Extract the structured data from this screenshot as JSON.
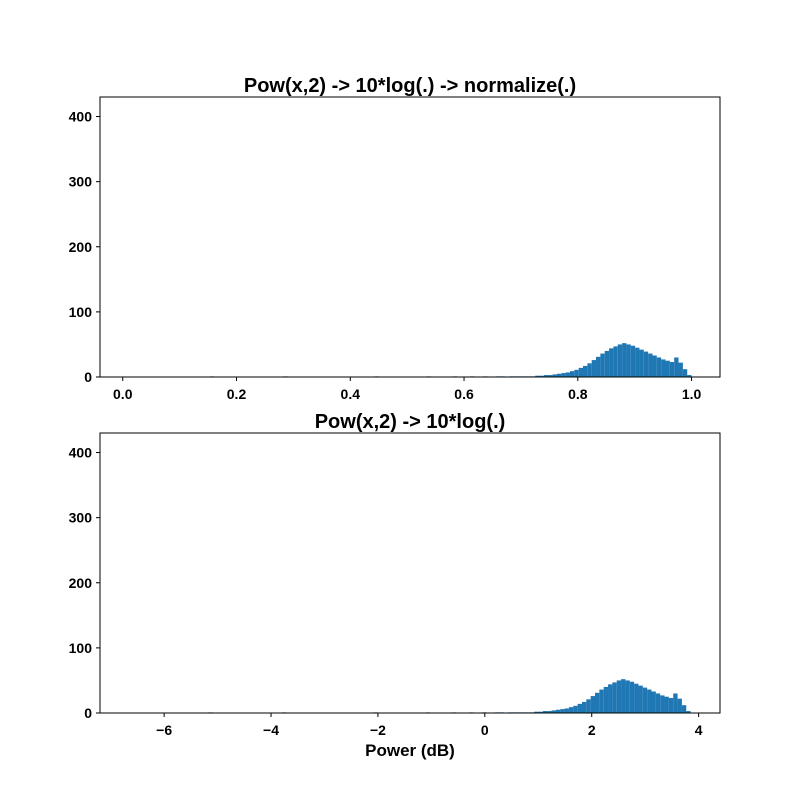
{
  "chart_data": [
    {
      "type": "bar",
      "subtype": "histogram",
      "title": "Pow(x,2) -> 10*log(.) -> normalize(.)",
      "xlabel": "",
      "ylabel": "",
      "xlim": [
        -0.04,
        1.05
      ],
      "ylim": [
        0,
        430
      ],
      "xticks": [
        0.0,
        0.2,
        0.4,
        0.6,
        0.8,
        1.0
      ],
      "xtick_labels": [
        "0.0",
        "0.2",
        "0.4",
        "0.6",
        "0.8",
        "1.0"
      ],
      "yticks": [
        0,
        100,
        200,
        300,
        400
      ],
      "ytick_labels": [
        "0",
        "100",
        "200",
        "300",
        "400"
      ],
      "color": "#1f77b4",
      "bins_range": [
        0.0,
        1.0
      ],
      "counts_approx": [
        0,
        0,
        0,
        0,
        0,
        0,
        0,
        0,
        0,
        0,
        0,
        0,
        0,
        0,
        0,
        0,
        0,
        0,
        0,
        0,
        1,
        0,
        0,
        0,
        0,
        0,
        0,
        0,
        0,
        0,
        0,
        0,
        0,
        0,
        0,
        0,
        0,
        1,
        0,
        0,
        0,
        0,
        0,
        0,
        0,
        0,
        0,
        0,
        0,
        0,
        0,
        0,
        0,
        0,
        0,
        0,
        0,
        0,
        1,
        0,
        0,
        0,
        0,
        0,
        0,
        0,
        0,
        0,
        0,
        0,
        1,
        0,
        0,
        0,
        0,
        0,
        1,
        0,
        0,
        0,
        1,
        0,
        0,
        1,
        0,
        0,
        1,
        1,
        0,
        1,
        1,
        1,
        1,
        1,
        1,
        2,
        2,
        3,
        3,
        4,
        5,
        6,
        7,
        9,
        11,
        14,
        17,
        21,
        26,
        31,
        36,
        40,
        44,
        47,
        50,
        52,
        50,
        48,
        45,
        42,
        39,
        36,
        33,
        30,
        27,
        25,
        23,
        30,
        22,
        12,
        3
      ],
      "grid": false,
      "legend": "none"
    },
    {
      "type": "bar",
      "subtype": "histogram",
      "title": "Pow(x,2) -> 10*log(.)",
      "xlabel": "Power (dB)",
      "ylabel": "",
      "xlim": [
        -7.2,
        4.4
      ],
      "ylim": [
        0,
        430
      ],
      "xticks": [
        -6,
        -4,
        -2,
        0,
        2,
        4
      ],
      "xtick_labels": [
        "−6",
        "−4",
        "−2",
        "0",
        "2",
        "4"
      ],
      "yticks": [
        0,
        100,
        200,
        300,
        400
      ],
      "ytick_labels": [
        "0",
        "100",
        "200",
        "300",
        "400"
      ],
      "color": "#1f77b4",
      "bins_range": [
        -6.8,
        3.85
      ],
      "counts_approx": [
        0,
        0,
        0,
        0,
        0,
        0,
        0,
        0,
        0,
        0,
        0,
        0,
        0,
        0,
        0,
        0,
        0,
        0,
        0,
        0,
        1,
        0,
        0,
        0,
        0,
        0,
        0,
        0,
        0,
        0,
        0,
        0,
        0,
        0,
        0,
        0,
        0,
        1,
        0,
        0,
        0,
        0,
        0,
        0,
        0,
        0,
        0,
        0,
        0,
        0,
        0,
        0,
        0,
        0,
        0,
        0,
        0,
        0,
        1,
        0,
        0,
        0,
        0,
        0,
        0,
        0,
        0,
        0,
        0,
        0,
        1,
        0,
        0,
        0,
        0,
        0,
        1,
        0,
        0,
        0,
        1,
        0,
        0,
        1,
        0,
        0,
        1,
        1,
        0,
        1,
        1,
        1,
        1,
        1,
        1,
        2,
        2,
        3,
        3,
        4,
        5,
        6,
        7,
        9,
        11,
        14,
        17,
        21,
        26,
        31,
        36,
        40,
        44,
        47,
        50,
        52,
        50,
        48,
        45,
        42,
        39,
        36,
        33,
        30,
        27,
        25,
        23,
        30,
        22,
        12,
        3
      ],
      "grid": false,
      "legend": "none"
    }
  ]
}
